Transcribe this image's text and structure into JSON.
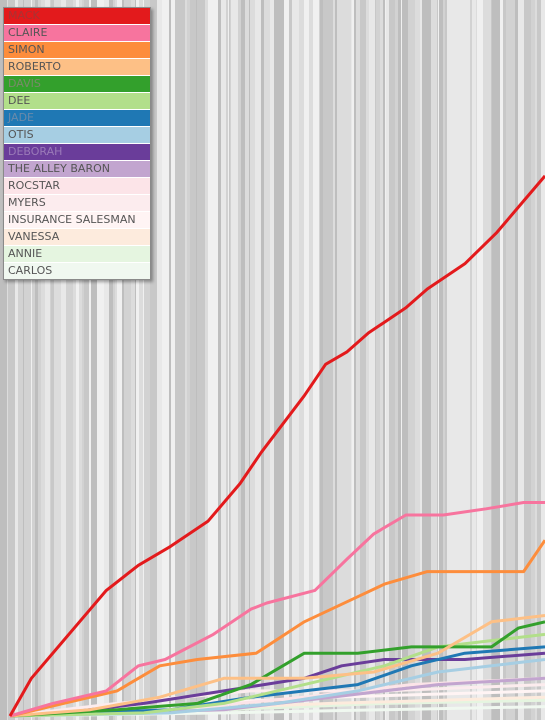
{
  "chart_data": {
    "type": "line",
    "title": "",
    "xlabel": "",
    "ylabel": "",
    "grid": false,
    "legend_placement": "top-left",
    "x_range": [
      0,
      100
    ],
    "y_range": [
      0,
      100
    ],
    "series": [
      {
        "name": "MACK",
        "color": "#e31a1c",
        "text_color": "#a93333",
        "points": [
          [
            0,
            0
          ],
          [
            4,
            6
          ],
          [
            10,
            12
          ],
          [
            15,
            17
          ],
          [
            18,
            20
          ],
          [
            24,
            24
          ],
          [
            30,
            27
          ],
          [
            37,
            31
          ],
          [
            43,
            37
          ],
          [
            47,
            42
          ],
          [
            55,
            51
          ],
          [
            59,
            56
          ],
          [
            63,
            58
          ],
          [
            67,
            61
          ],
          [
            74,
            65
          ],
          [
            78,
            68
          ],
          [
            85,
            72
          ],
          [
            91,
            77
          ],
          [
            96,
            82
          ],
          [
            100,
            86
          ]
        ]
      },
      {
        "name": "CLAIRE",
        "color": "#f7749e",
        "text_color": "#555555",
        "points": [
          [
            0,
            0
          ],
          [
            8,
            2
          ],
          [
            18,
            4
          ],
          [
            24,
            8
          ],
          [
            29,
            9
          ],
          [
            38,
            13
          ],
          [
            45,
            17
          ],
          [
            48,
            18
          ],
          [
            57,
            20
          ],
          [
            63,
            25
          ],
          [
            68,
            29
          ],
          [
            74,
            32
          ],
          [
            81,
            32
          ],
          [
            89,
            33
          ],
          [
            96,
            34
          ],
          [
            100,
            34
          ]
        ]
      },
      {
        "name": "SIMON",
        "color": "#fd8d3c",
        "text_color": "#555555",
        "points": [
          [
            0,
            0
          ],
          [
            10,
            2
          ],
          [
            20,
            4
          ],
          [
            28,
            8
          ],
          [
            35,
            9
          ],
          [
            46,
            10
          ],
          [
            55,
            15
          ],
          [
            65,
            19
          ],
          [
            70,
            21
          ],
          [
            78,
            23
          ],
          [
            88,
            23
          ],
          [
            96,
            23
          ],
          [
            100,
            28
          ]
        ]
      },
      {
        "name": "ROBERTO",
        "color": "#fdc086",
        "text_color": "#555555",
        "points": [
          [
            0,
            0
          ],
          [
            15,
            1
          ],
          [
            28,
            3
          ],
          [
            40,
            6
          ],
          [
            55,
            6
          ],
          [
            68,
            7
          ],
          [
            80,
            10
          ],
          [
            90,
            15
          ],
          [
            100,
            16
          ]
        ]
      },
      {
        "name": "DAVIS",
        "color": "#33a02c",
        "text_color": "#7a8a6a",
        "points": [
          [
            0,
            0
          ],
          [
            20,
            1
          ],
          [
            35,
            2
          ],
          [
            45,
            5
          ],
          [
            55,
            10
          ],
          [
            65,
            10
          ],
          [
            75,
            11
          ],
          [
            90,
            11
          ],
          [
            95,
            14
          ],
          [
            100,
            15
          ]
        ]
      },
      {
        "name": "DEE",
        "color": "#b2df8a",
        "text_color": "#555555",
        "points": [
          [
            0,
            0
          ],
          [
            25,
            0.5
          ],
          [
            40,
            2
          ],
          [
            55,
            5
          ],
          [
            70,
            8
          ],
          [
            80,
            11
          ],
          [
            90,
            12
          ],
          [
            100,
            13
          ]
        ]
      },
      {
        "name": "JADE",
        "color": "#1f78b4",
        "text_color": "#6a8aaa",
        "points": [
          [
            0,
            0
          ],
          [
            30,
            1
          ],
          [
            45,
            3
          ],
          [
            55,
            4
          ],
          [
            65,
            5
          ],
          [
            75,
            8
          ],
          [
            85,
            10
          ],
          [
            100,
            11
          ]
        ]
      },
      {
        "name": "OTIS",
        "color": "#a6cee3",
        "text_color": "#555555",
        "points": [
          [
            0,
            0
          ],
          [
            30,
            0.5
          ],
          [
            50,
            2
          ],
          [
            65,
            4
          ],
          [
            80,
            7
          ],
          [
            100,
            9
          ]
        ]
      },
      {
        "name": "DEBORAH",
        "color": "#6a3d9a",
        "text_color": "#9a7ab8",
        "points": [
          [
            0,
            0
          ],
          [
            10,
            0.5
          ],
          [
            25,
            2
          ],
          [
            40,
            4
          ],
          [
            55,
            6
          ],
          [
            62,
            8
          ],
          [
            70,
            9
          ],
          [
            85,
            9
          ],
          [
            100,
            10
          ]
        ]
      },
      {
        "name": "THE ALLEY BARON",
        "color": "#c2a5cf",
        "text_color": "#555555",
        "points": [
          [
            0,
            0
          ],
          [
            40,
            1
          ],
          [
            60,
            3
          ],
          [
            80,
            5
          ],
          [
            100,
            6
          ]
        ]
      },
      {
        "name": "ROCSTAR",
        "color": "#fce4e8",
        "text_color": "#555555",
        "points": [
          [
            0,
            0
          ],
          [
            30,
            1
          ],
          [
            55,
            3
          ],
          [
            75,
            5
          ],
          [
            100,
            6
          ]
        ]
      },
      {
        "name": "MYERS",
        "color": "#fcecee",
        "text_color": "#555555",
        "points": [
          [
            0,
            0
          ],
          [
            20,
            2
          ],
          [
            45,
            4
          ],
          [
            70,
            4
          ],
          [
            100,
            5
          ]
        ]
      },
      {
        "name": "INSURANCE SALESMAN",
        "color": "#fff4f4",
        "text_color": "#555555",
        "points": [
          [
            0,
            0
          ],
          [
            35,
            2
          ],
          [
            60,
            3
          ],
          [
            100,
            4
          ]
        ]
      },
      {
        "name": "VANESSA",
        "color": "#fdebdd",
        "text_color": "#555555",
        "points": [
          [
            0,
            0
          ],
          [
            30,
            1
          ],
          [
            60,
            2
          ],
          [
            100,
            3
          ]
        ]
      },
      {
        "name": "ANNIE",
        "color": "#e5f5e0",
        "text_color": "#555555",
        "points": [
          [
            0,
            0
          ],
          [
            40,
            1
          ],
          [
            70,
            2
          ],
          [
            100,
            2.5
          ]
        ]
      },
      {
        "name": "CARLOS",
        "color": "#f0f8f0",
        "text_color": "#555555",
        "points": [
          [
            0,
            0
          ],
          [
            40,
            0.5
          ],
          [
            70,
            1
          ],
          [
            100,
            1.5
          ]
        ]
      }
    ]
  }
}
